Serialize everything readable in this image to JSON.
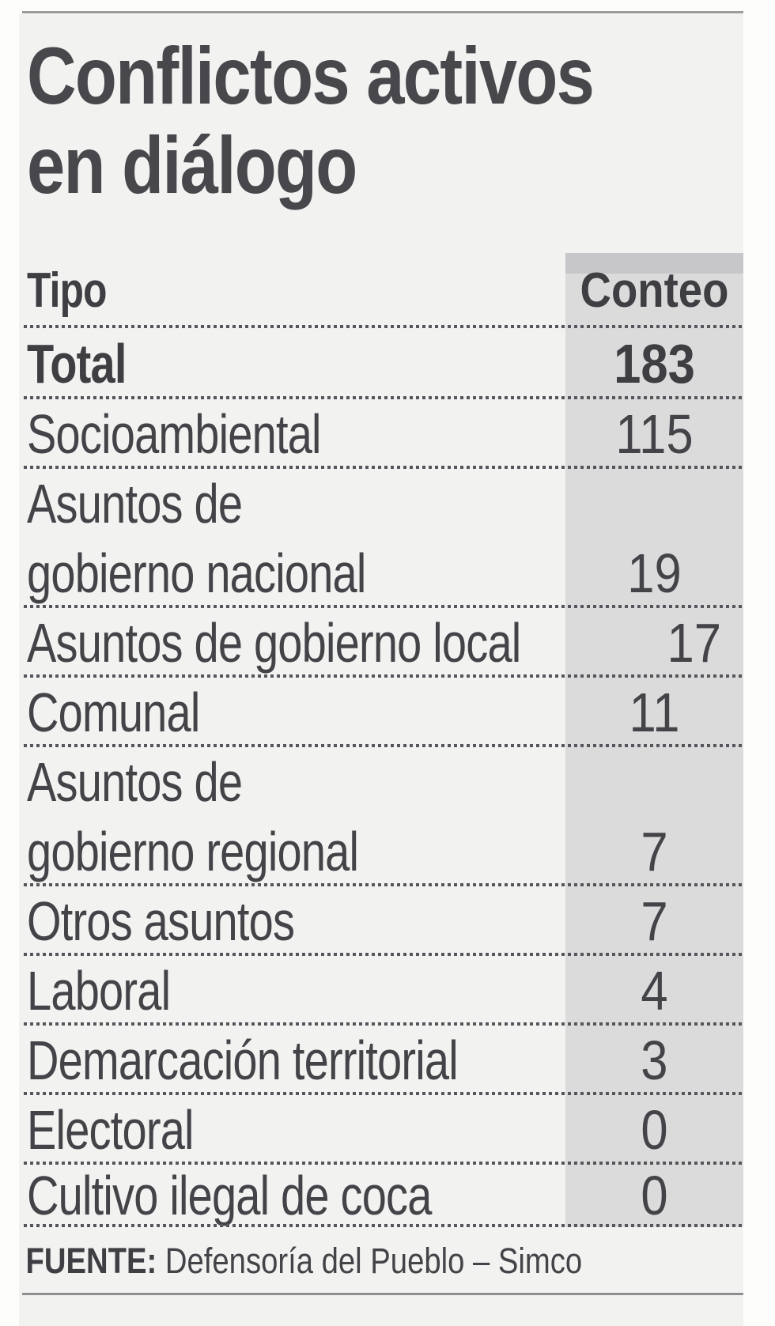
{
  "title": {
    "line1": "Conflictos activos",
    "line2": "en diálogo"
  },
  "table": {
    "header": {
      "type_label": "Tipo",
      "count_label": "Conteo"
    },
    "rows": [
      {
        "lines": [
          "Total"
        ],
        "value": "183",
        "emphasis": true
      },
      {
        "lines": [
          "Socioambiental"
        ],
        "value": "115"
      },
      {
        "lines": [
          "Asuntos de",
          "gobierno nacional"
        ],
        "value": "19"
      },
      {
        "lines": [
          "Asuntos de gobierno local"
        ],
        "value": "17"
      },
      {
        "lines": [
          "Comunal"
        ],
        "value": "11"
      },
      {
        "lines": [
          "Asuntos de",
          "gobierno regional"
        ],
        "value": "7"
      },
      {
        "lines": [
          "Otros asuntos"
        ],
        "value": "7"
      },
      {
        "lines": [
          "Laboral"
        ],
        "value": "4"
      },
      {
        "lines": [
          "Demarcación territorial"
        ],
        "value": "3"
      },
      {
        "lines": [
          "Electoral"
        ],
        "value": "0"
      },
      {
        "lines": [
          "Cultivo ilegal de coca"
        ],
        "value": "0"
      }
    ]
  },
  "footer": {
    "source_label": "FUENTE:",
    "source_text": "Defensoría del Pueblo – Simco"
  },
  "colors": {
    "panel_bg": "#f2f2f1",
    "count_column_bg": "#dbdbdc",
    "count_column_cap": "#c7c7c9",
    "text": "#434348",
    "text_bold": "#3e3e43",
    "title_text": "#48484c",
    "rule": "#9c9c9c",
    "dots": "#55555b"
  },
  "chart_data": {
    "type": "table",
    "title": "Conflictos activos en diálogo",
    "columns": [
      "Tipo",
      "Conteo"
    ],
    "rows": [
      [
        "Total",
        183
      ],
      [
        "Socioambiental",
        115
      ],
      [
        "Asuntos de gobierno nacional",
        19
      ],
      [
        "Asuntos de gobierno local",
        17
      ],
      [
        "Comunal",
        11
      ],
      [
        "Asuntos de gobierno regional",
        7
      ],
      [
        "Otros asuntos",
        7
      ],
      [
        "Laboral",
        4
      ],
      [
        "Demarcación territorial",
        3
      ],
      [
        "Electoral",
        0
      ],
      [
        "Cultivo ilegal de coca",
        0
      ]
    ],
    "source": "Defensoría del Pueblo – Simco",
    "layout": "two-column table, count column shaded gray, dotted row separators, total row bold"
  }
}
